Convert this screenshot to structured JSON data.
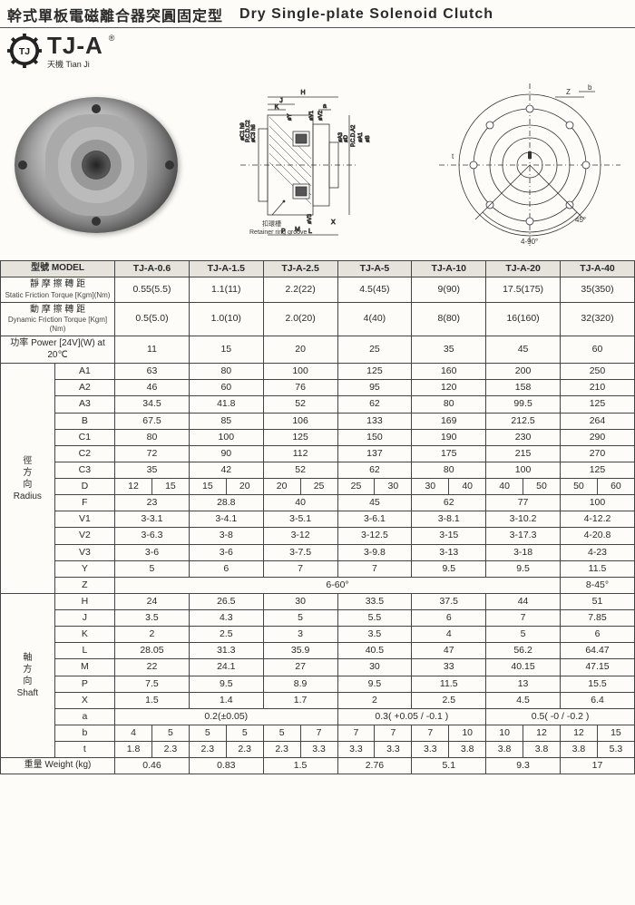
{
  "header": {
    "title_cn": "幹式單板電磁離合器突圓固定型",
    "title_en": "Dry Single-plate Solenoid Clutch"
  },
  "logo": {
    "brand": "TJ-A",
    "reg": "®",
    "sub_cn": "天機",
    "sub_en": "Tian Ji",
    "gear_inner": "TJ"
  },
  "diagram_labels": {
    "retainer": "Retainer ring groove",
    "retainer_cn": "扣環槽",
    "dims_side": [
      "H",
      "J",
      "K",
      "a",
      "øY",
      "M",
      "P",
      "L",
      "X",
      "øV3",
      "øV1",
      "øV2",
      "øA1",
      "øA3",
      "øD",
      "P.C.D.A2",
      "øB",
      "øD",
      "øC1 h9",
      "øC3 h8",
      "P.C.D.C2"
    ],
    "dims_front": [
      "Z",
      "b",
      "t",
      "4-90°",
      "45°"
    ]
  },
  "table": {
    "header_model_cn": "型號",
    "header_model_en": "MODEL",
    "models": [
      "TJ-A-0.6",
      "TJ-A-1.5",
      "TJ-A-2.5",
      "TJ-A-5",
      "TJ-A-10",
      "TJ-A-20",
      "TJ-A-40"
    ],
    "rows_top": [
      {
        "label_cn": "靜 摩 擦 轉 距",
        "label_sub": "Static Friction Torque",
        "unit": "[Kgm](Nm)",
        "vals": [
          "0.55(5.5)",
          "1.1(11)",
          "2.2(22)",
          "4.5(45)",
          "9(90)",
          "17.5(175)",
          "35(350)"
        ]
      },
      {
        "label_cn": "動 摩 擦 轉 距",
        "label_sub": "Dynamic Friction Torque",
        "unit": "[Kgm](Nm)",
        "vals": [
          "0.5(5.0)",
          "1.0(10)",
          "2.0(20)",
          "4(40)",
          "8(80)",
          "16(160)",
          "32(320)"
        ]
      },
      {
        "label_cn": "功率 Power [24V](W) at 20℃",
        "label_sub": "",
        "unit": "",
        "vals": [
          "11",
          "15",
          "20",
          "25",
          "35",
          "45",
          "60"
        ]
      }
    ],
    "group_radius": {
      "label_cn": "徑方向",
      "label_en": "Radius",
      "rows": [
        {
          "p": "A1",
          "vals": [
            "63",
            "80",
            "100",
            "125",
            "160",
            "200",
            "250"
          ]
        },
        {
          "p": "A2",
          "vals": [
            "46",
            "60",
            "76",
            "95",
            "120",
            "158",
            "210"
          ]
        },
        {
          "p": "A3",
          "vals": [
            "34.5",
            "41.8",
            "52",
            "62",
            "80",
            "99.5",
            "125"
          ]
        },
        {
          "p": "B",
          "vals": [
            "67.5",
            "85",
            "106",
            "133",
            "169",
            "212.5",
            "264"
          ]
        },
        {
          "p": "C1",
          "vals": [
            "80",
            "100",
            "125",
            "150",
            "190",
            "230",
            "290"
          ]
        },
        {
          "p": "C2",
          "vals": [
            "72",
            "90",
            "112",
            "137",
            "175",
            "215",
            "270"
          ]
        },
        {
          "p": "C3",
          "vals": [
            "35",
            "42",
            "52",
            "62",
            "80",
            "100",
            "125"
          ]
        },
        {
          "p": "D",
          "split": true,
          "vals": [
            [
              "12",
              "15"
            ],
            [
              "15",
              "20"
            ],
            [
              "20",
              "25"
            ],
            [
              "25",
              "30"
            ],
            [
              "30",
              "40"
            ],
            [
              "40",
              "50"
            ],
            [
              "50",
              "60"
            ]
          ]
        },
        {
          "p": "F",
          "vals": [
            "23",
            "28.8",
            "40",
            "45",
            "62",
            "77",
            "100"
          ]
        },
        {
          "p": "V1",
          "vals": [
            "3-3.1",
            "3-4.1",
            "3-5.1",
            "3-6.1",
            "3-8.1",
            "3-10.2",
            "4-12.2"
          ]
        },
        {
          "p": "V2",
          "vals": [
            "3-6.3",
            "3-8",
            "3-12",
            "3-12.5",
            "3-15",
            "3-17.3",
            "4-20.8"
          ]
        },
        {
          "p": "V3",
          "vals": [
            "3-6",
            "3-6",
            "3-7.5",
            "3-9.8",
            "3-13",
            "3-18",
            "4-23"
          ]
        },
        {
          "p": "Y",
          "vals": [
            "5",
            "6",
            "7",
            "7",
            "9.5",
            "9.5",
            "11.5"
          ]
        },
        {
          "p": "Z",
          "span": true,
          "span_text": "6-60°",
          "last": "8-45°"
        }
      ]
    },
    "group_shaft": {
      "label_cn": "軸方向",
      "label_en": "Shaft",
      "rows": [
        {
          "p": "H",
          "vals": [
            "24",
            "26.5",
            "30",
            "33.5",
            "37.5",
            "44",
            "51"
          ]
        },
        {
          "p": "J",
          "vals": [
            "3.5",
            "4.3",
            "5",
            "5.5",
            "6",
            "7",
            "7.85"
          ]
        },
        {
          "p": "K",
          "vals": [
            "2",
            "2.5",
            "3",
            "3.5",
            "4",
            "5",
            "6"
          ]
        },
        {
          "p": "L",
          "vals": [
            "28.05",
            "31.3",
            "35.9",
            "40.5",
            "47",
            "56.2",
            "64.47"
          ]
        },
        {
          "p": "M",
          "vals": [
            "22",
            "24.1",
            "27",
            "30",
            "33",
            "40.15",
            "47.15"
          ]
        },
        {
          "p": "P",
          "vals": [
            "7.5",
            "9.5",
            "8.9",
            "9.5",
            "11.5",
            "13",
            "15.5"
          ]
        },
        {
          "p": "X",
          "vals": [
            "1.5",
            "1.4",
            "1.7",
            "2",
            "2.5",
            "4.5",
            "6.4"
          ]
        },
        {
          "p": "a",
          "merge": [
            {
              "span": 3,
              "text": "0.2(±0.05)"
            },
            {
              "span": 2,
              "text": "0.3( +0.05 / -0.1 )"
            },
            {
              "span": 2,
              "text": "0.5( -0 / -0.2 )"
            }
          ]
        },
        {
          "p": "b",
          "split": true,
          "vals": [
            [
              "4",
              "5"
            ],
            [
              "5",
              "5"
            ],
            [
              "5",
              "7"
            ],
            [
              "7",
              "7"
            ],
            [
              "7",
              "10"
            ],
            [
              "10",
              "12"
            ],
            [
              "12",
              "15"
            ]
          ]
        },
        {
          "p": "t",
          "split": true,
          "vals": [
            [
              "1.8",
              "2.3"
            ],
            [
              "2.3",
              "2.3"
            ],
            [
              "2.3",
              "3.3"
            ],
            [
              "3.3",
              "3.3"
            ],
            [
              "3.3",
              "3.8"
            ],
            [
              "3.8",
              "3.8"
            ],
            [
              "3.8",
              "5.3"
            ]
          ]
        }
      ]
    },
    "weight": {
      "label_cn": "重量 Weight",
      "unit": "(kg)",
      "vals": [
        "0.46",
        "0.83",
        "1.5",
        "2.76",
        "5.1",
        "9.3",
        "17"
      ]
    }
  },
  "colors": {
    "border": "#444444",
    "header_bg": "#e5e3db",
    "page_bg": "#fdfcf8",
    "text": "#2a2a2a"
  }
}
